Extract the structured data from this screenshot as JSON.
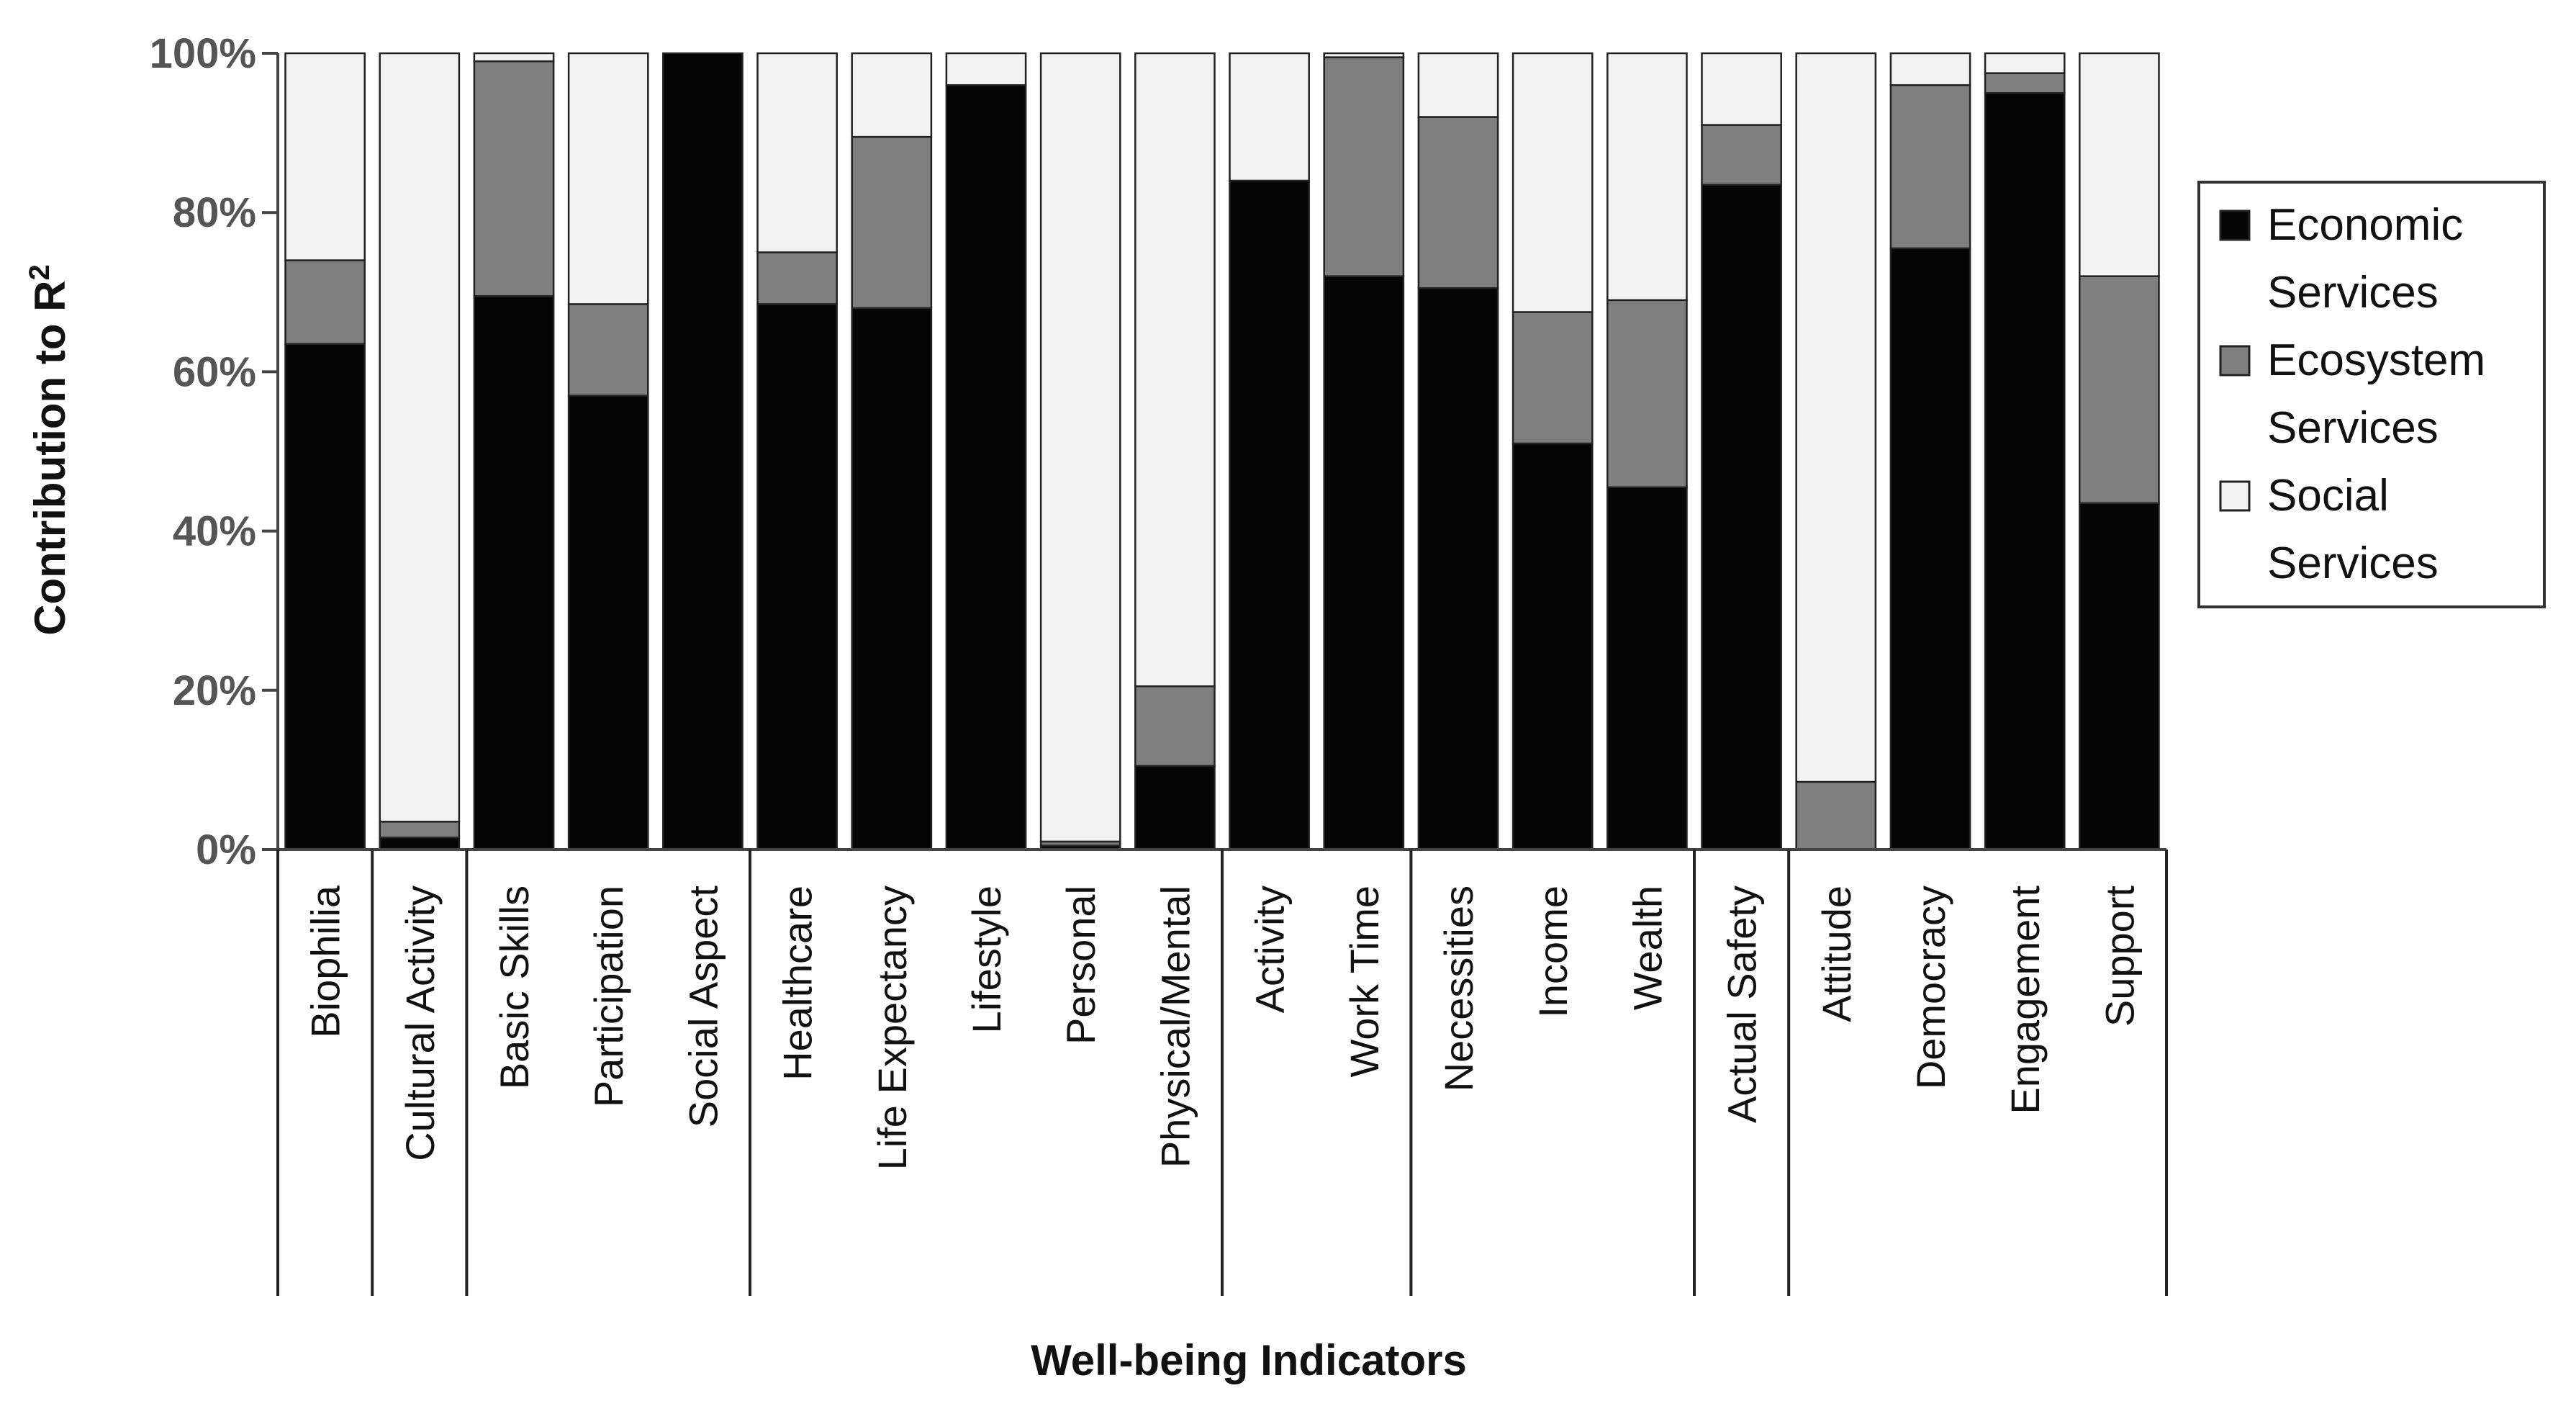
{
  "chart_data": {
    "type": "bar",
    "stacked": "percent",
    "xlabel": "Well-being Indicators",
    "ylabel": "Contribution to R",
    "ylabel_superscript": "2",
    "ylim": [
      0,
      100
    ],
    "yticks": [
      "0%",
      "20%",
      "40%",
      "60%",
      "80%",
      "100%"
    ],
    "categories": [
      "Biophilia",
      "Cultural Activity",
      "Basic Skills",
      "Participation",
      "Social Aspect",
      "Healthcare",
      "Life Expectancy",
      "Lifestyle",
      "Personal",
      "Physical/Mental",
      "Activity",
      "Work Time",
      "Necessities",
      "Income",
      "Wealth",
      "Actual Safety",
      "Attitude",
      "Democracy",
      "Engagement",
      "Support"
    ],
    "groups": [
      [
        0,
        0
      ],
      [
        1,
        1
      ],
      [
        2,
        4
      ],
      [
        5,
        9
      ],
      [
        10,
        11
      ],
      [
        12,
        14
      ],
      [
        15,
        15
      ],
      [
        16,
        19
      ]
    ],
    "series": [
      {
        "name": "Economic Services",
        "color": "#050505",
        "values": [
          63.5,
          1.5,
          69.5,
          57,
          100,
          68.5,
          68,
          96,
          0.5,
          10.5,
          84,
          72,
          70.5,
          51,
          45.5,
          83.5,
          0,
          75.5,
          95,
          43.5
        ]
      },
      {
        "name": "Ecosystem Services",
        "color": "#7f7f7f",
        "values": [
          10.5,
          2,
          29.5,
          11.5,
          0,
          6.5,
          21.5,
          0,
          0.5,
          10,
          0,
          27.5,
          21.5,
          16.5,
          23.5,
          7.5,
          8.5,
          20.5,
          2.5,
          28.5
        ]
      },
      {
        "name": "Social Services",
        "color": "#f2f2f2",
        "values": [
          26,
          96.5,
          1,
          31.5,
          0,
          25,
          10.5,
          4,
          99,
          79.5,
          16,
          0.5,
          8,
          32.5,
          31,
          9,
          91.5,
          4,
          2.5,
          28
        ]
      }
    ],
    "legend": {
      "position": "right",
      "entries": [
        {
          "line1": "Economic",
          "line2": "Services"
        },
        {
          "line1": "Ecosystem",
          "line2": "Services"
        },
        {
          "line1": "Social",
          "line2": "Services"
        }
      ]
    },
    "grid": false
  }
}
